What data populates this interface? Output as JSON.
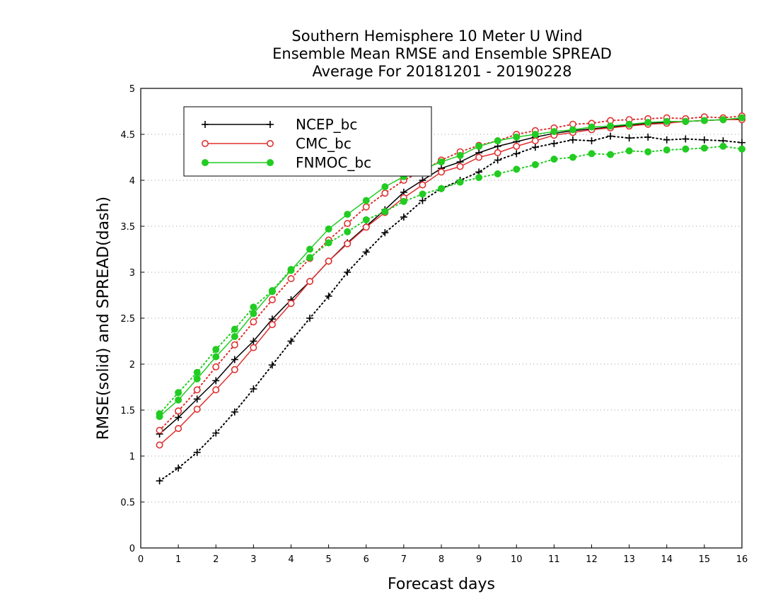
{
  "chart_data": {
    "type": "line",
    "title": [
      "Southern Hemisphere 10 Meter U Wind",
      "Ensemble Mean RMSE and Ensemble SPREAD",
      "Average For 20181201 - 20190228"
    ],
    "xlabel": "Forecast days",
    "ylabel": "RMSE(solid) and SPREAD(dash)",
    "xlim": [
      0,
      16
    ],
    "ylim": [
      0,
      5
    ],
    "xticks": [
      "0",
      "1",
      "2",
      "3",
      "4",
      "5",
      "6",
      "7",
      "8",
      "9",
      "10",
      "11",
      "12",
      "13",
      "14",
      "15",
      "16"
    ],
    "yticks": [
      "0",
      "0.5",
      "1",
      "1.5",
      "2",
      "2.5",
      "3",
      "3.5",
      "4",
      "4.5",
      "5"
    ],
    "grid": "horizontal dotted",
    "legend_position": "top-left",
    "x": [
      0.5,
      1,
      1.5,
      2,
      2.5,
      3,
      3.5,
      4,
      4.5,
      5,
      5.5,
      6,
      6.5,
      7,
      7.5,
      8,
      8.5,
      9,
      9.5,
      10,
      10.5,
      11,
      11.5,
      12,
      12.5,
      13,
      13.5,
      14,
      14.5,
      15,
      15.5,
      16
    ],
    "series": [
      {
        "name": "NCEP_bc",
        "color": "#000000",
        "marker": "plus",
        "rmse": [
          1.24,
          1.42,
          1.62,
          1.82,
          2.05,
          2.25,
          2.49,
          2.7,
          2.9,
          3.12,
          3.32,
          3.5,
          3.68,
          3.87,
          4.0,
          4.13,
          4.2,
          4.3,
          4.37,
          4.42,
          4.47,
          4.51,
          4.54,
          4.56,
          4.58,
          4.6,
          4.62,
          4.63,
          4.64,
          4.65,
          4.66,
          4.67
        ],
        "spread": [
          0.73,
          0.87,
          1.04,
          1.25,
          1.48,
          1.73,
          1.99,
          2.25,
          2.5,
          2.74,
          3.0,
          3.22,
          3.43,
          3.6,
          3.78,
          3.91,
          4.0,
          4.09,
          4.22,
          4.29,
          4.36,
          4.4,
          4.44,
          4.43,
          4.48,
          4.46,
          4.47,
          4.44,
          4.45,
          4.44,
          4.43,
          4.41
        ]
      },
      {
        "name": "CMC_bc",
        "color": "#e03030",
        "marker": "open-circle",
        "rmse": [
          1.12,
          1.3,
          1.51,
          1.72,
          1.94,
          2.18,
          2.43,
          2.66,
          2.9,
          3.12,
          3.31,
          3.49,
          3.65,
          3.81,
          3.95,
          4.09,
          4.15,
          4.25,
          4.3,
          4.37,
          4.43,
          4.49,
          4.52,
          4.55,
          4.57,
          4.59,
          4.61,
          4.62,
          4.64,
          4.65,
          4.66,
          4.66
        ],
        "spread": [
          1.28,
          1.49,
          1.72,
          1.97,
          2.21,
          2.46,
          2.7,
          2.93,
          3.15,
          3.35,
          3.53,
          3.71,
          3.86,
          4.0,
          4.1,
          4.22,
          4.31,
          4.38,
          4.43,
          4.5,
          4.54,
          4.57,
          4.61,
          4.62,
          4.65,
          4.66,
          4.67,
          4.68,
          4.67,
          4.69,
          4.68,
          4.7
        ]
      },
      {
        "name": "FNMOC_bc",
        "color": "#22cc22",
        "marker": "filled-circle",
        "rmse": [
          1.43,
          1.61,
          1.84,
          2.08,
          2.3,
          2.55,
          2.79,
          3.02,
          3.25,
          3.47,
          3.63,
          3.78,
          3.93,
          4.04,
          4.12,
          4.2,
          4.27,
          4.37,
          4.43,
          4.47,
          4.5,
          4.53,
          4.55,
          4.58,
          4.59,
          4.61,
          4.63,
          4.64,
          4.64,
          4.65,
          4.66,
          4.68
        ],
        "spread": [
          1.46,
          1.69,
          1.91,
          2.16,
          2.38,
          2.62,
          2.8,
          3.03,
          3.16,
          3.32,
          3.44,
          3.57,
          3.66,
          3.77,
          3.85,
          3.91,
          3.98,
          4.03,
          4.07,
          4.12,
          4.17,
          4.23,
          4.25,
          4.29,
          4.28,
          4.32,
          4.31,
          4.33,
          4.34,
          4.35,
          4.37,
          4.34
        ]
      }
    ]
  }
}
